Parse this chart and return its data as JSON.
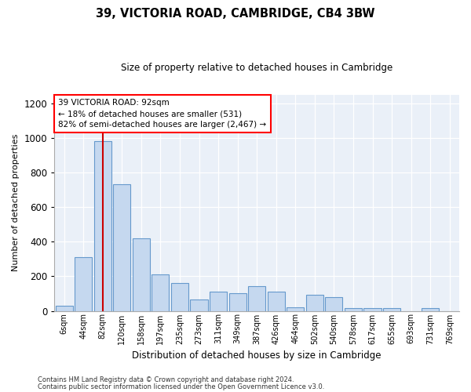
{
  "title": "39, VICTORIA ROAD, CAMBRIDGE, CB4 3BW",
  "subtitle": "Size of property relative to detached houses in Cambridge",
  "xlabel": "Distribution of detached houses by size in Cambridge",
  "ylabel": "Number of detached properties",
  "annotation_lines": [
    "39 VICTORIA ROAD: 92sqm",
    "← 18% of detached houses are smaller (531)",
    "82% of semi-detached houses are larger (2,467) →"
  ],
  "footer1": "Contains HM Land Registry data © Crown copyright and database right 2024.",
  "footer2": "Contains public sector information licensed under the Open Government Licence v3.0.",
  "bin_labels": [
    "6sqm",
    "44sqm",
    "82sqm",
    "120sqm",
    "158sqm",
    "197sqm",
    "235sqm",
    "273sqm",
    "311sqm",
    "349sqm",
    "387sqm",
    "426sqm",
    "464sqm",
    "502sqm",
    "540sqm",
    "578sqm",
    "617sqm",
    "655sqm",
    "693sqm",
    "731sqm",
    "769sqm"
  ],
  "bar_heights": [
    30,
    310,
    980,
    730,
    420,
    210,
    160,
    65,
    110,
    100,
    145,
    110,
    20,
    95,
    80,
    15,
    15,
    15,
    0,
    15,
    0
  ],
  "bar_color": "#c5d8ef",
  "bar_edge_color": "#6699cc",
  "vline_color": "#cc0000",
  "ylim": [
    0,
    1250
  ],
  "yticks": [
    0,
    200,
    400,
    600,
    800,
    1000,
    1200
  ],
  "background_color": "#eaf0f8",
  "grid_color": "#ffffff",
  "property_sqm": 92,
  "vline_position": 2.0
}
